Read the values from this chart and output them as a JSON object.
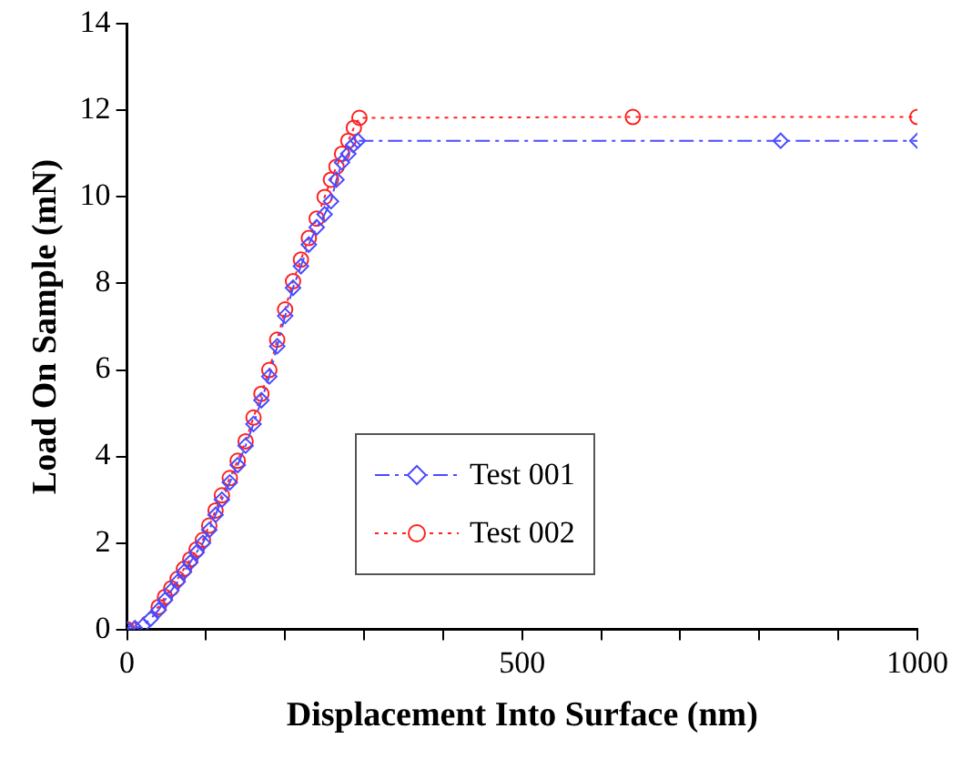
{
  "chart_data": {
    "type": "line",
    "xlabel": "Displacement Into Surface (nm)",
    "ylabel": "Load On Sample (mN)",
    "xlim": [
      0,
      1000
    ],
    "xticks": [
      0,
      {
        "value": 100,
        "label": null
      },
      {
        "value": 200,
        "label": null
      },
      {
        "value": 300,
        "label": null
      },
      {
        "value": 400,
        "label": null
      },
      500,
      {
        "value": 600,
        "label": null
      },
      {
        "value": 700,
        "label": null
      },
      {
        "value": 800,
        "label": null
      },
      {
        "value": 900,
        "label": null
      },
      1000
    ],
    "ylim": [
      0,
      14
    ],
    "yticks": [
      0,
      2,
      4,
      6,
      8,
      10,
      12,
      14
    ],
    "grid": false,
    "legend": "bottom left",
    "series": [
      {
        "name": "Test 001",
        "color": "#4b4bff",
        "marker": "diamond",
        "line_style": "dashed",
        "x": [
          0,
          10,
          20,
          30,
          40,
          48,
          56,
          64,
          72,
          80,
          88,
          96,
          104,
          112,
          120,
          130,
          140,
          150,
          160,
          170,
          180,
          190,
          200,
          210,
          220,
          230,
          240,
          250,
          258,
          265,
          272,
          280,
          286,
          292,
          827,
          1000
        ],
        "values": [
          0,
          0.03,
          0.08,
          0.25,
          0.45,
          0.68,
          0.9,
          1.1,
          1.33,
          1.55,
          1.78,
          2.0,
          2.3,
          2.65,
          3.0,
          3.4,
          3.8,
          4.25,
          4.75,
          5.3,
          5.85,
          6.55,
          7.25,
          7.9,
          8.4,
          8.9,
          9.3,
          9.6,
          9.9,
          10.4,
          10.8,
          11.0,
          11.2,
          11.3,
          11.3,
          11.3
        ]
      },
      {
        "name": "Test 002",
        "color": "#ff2020",
        "marker": "circle",
        "line_style": "dotted",
        "x": [
          0,
          40,
          48,
          56,
          64,
          72,
          80,
          88,
          96,
          104,
          112,
          120,
          130,
          140,
          150,
          160,
          170,
          180,
          190,
          200,
          210,
          220,
          230,
          240,
          250,
          258,
          265,
          272,
          280,
          287,
          294,
          640,
          1000
        ],
        "values": [
          0,
          0.52,
          0.75,
          0.95,
          1.17,
          1.4,
          1.62,
          1.85,
          2.07,
          2.4,
          2.75,
          3.1,
          3.5,
          3.9,
          4.35,
          4.9,
          5.45,
          6.0,
          6.7,
          7.4,
          8.05,
          8.55,
          9.05,
          9.5,
          10.0,
          10.4,
          10.7,
          11.0,
          11.3,
          11.6,
          11.83,
          11.85,
          11.85
        ]
      }
    ]
  }
}
